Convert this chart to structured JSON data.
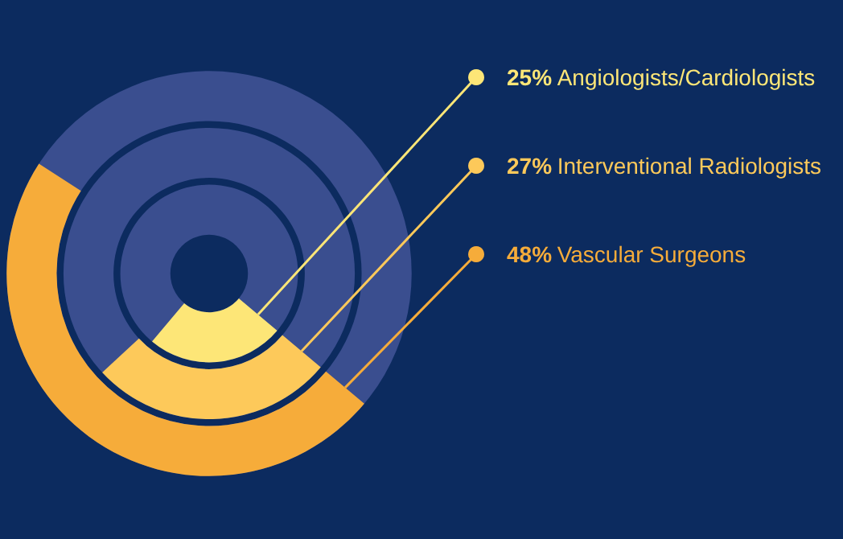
{
  "chart_data": {
    "type": "other",
    "categories": [
      "Angiologists/Cardiologists",
      "Interventional Radiologists",
      "Vascular Surgeons"
    ],
    "values": [
      25,
      27,
      48
    ],
    "value_labels": [
      "25%",
      "27%",
      "48%"
    ],
    "colors": [
      "#fde677",
      "#fdc95a",
      "#f6ac3a"
    ]
  }
}
